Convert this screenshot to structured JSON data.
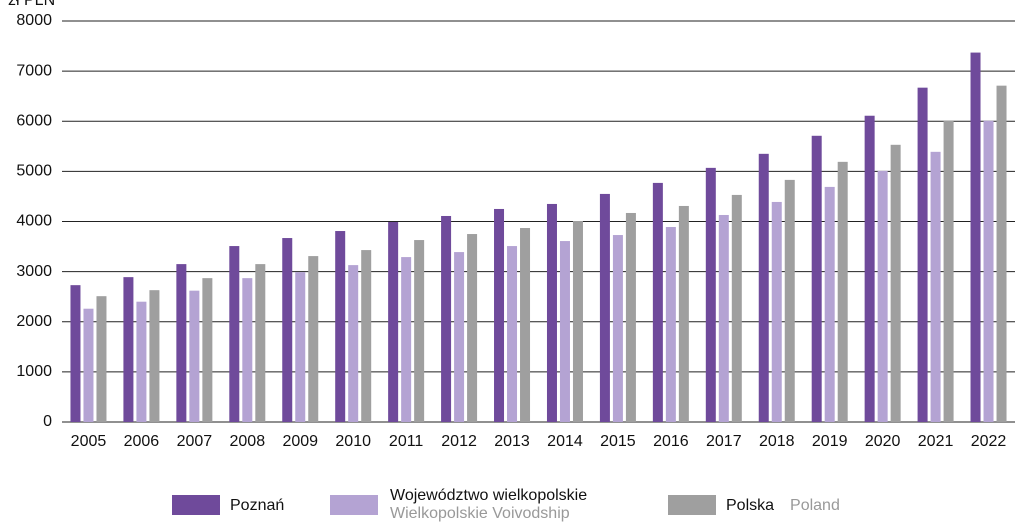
{
  "chart_data": {
    "type": "bar",
    "y_label": "zł PLN",
    "categories": [
      "2005",
      "2006",
      "2007",
      "2008",
      "2009",
      "2010",
      "2011",
      "2012",
      "2013",
      "2014",
      "2015",
      "2016",
      "2017",
      "2018",
      "2019",
      "2020",
      "2021",
      "2022"
    ],
    "series": [
      {
        "name": "Poznań",
        "color": "#6f4a9b",
        "values": [
          2730,
          2890,
          3150,
          3510,
          3670,
          3810,
          3990,
          4110,
          4250,
          4350,
          4550,
          4770,
          5070,
          5350,
          5710,
          6110,
          6670,
          7370
        ]
      },
      {
        "name": "Województwo wielkopolskie",
        "name_en": "Wielkopolskie Voivodship",
        "color": "#b4a3d3",
        "values": [
          2260,
          2400,
          2620,
          2870,
          2990,
          3130,
          3290,
          3390,
          3510,
          3610,
          3730,
          3890,
          4130,
          4390,
          4690,
          5010,
          5390,
          6010
        ]
      },
      {
        "name": "Polska",
        "name_en": "Poland",
        "color": "#9f9f9f",
        "values": [
          2510,
          2630,
          2870,
          3150,
          3310,
          3430,
          3630,
          3750,
          3870,
          4010,
          4170,
          4310,
          4530,
          4830,
          5190,
          5530,
          6010,
          6710
        ]
      }
    ],
    "ylim": [
      0,
      8000
    ],
    "yticks": [
      0,
      1000,
      2000,
      3000,
      4000,
      5000,
      6000,
      7000,
      8000
    ],
    "grid": true
  }
}
